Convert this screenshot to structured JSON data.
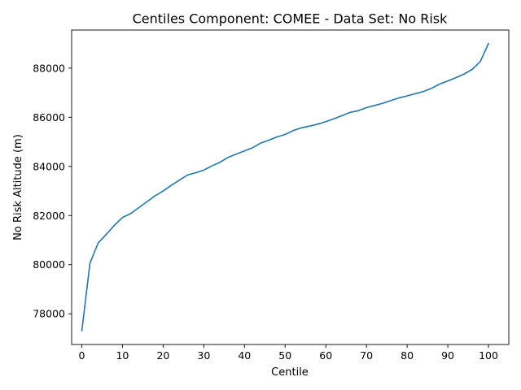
{
  "chart_data": {
    "type": "line",
    "title": "Centiles Component: COMEE - Data Set: No Risk",
    "xlabel": "Centile",
    "ylabel": "No Risk Altitude (m)",
    "xlim": [
      -2.5,
      105
    ],
    "ylim": [
      76750,
      89550
    ],
    "xticks": [
      0,
      10,
      20,
      30,
      40,
      50,
      60,
      70,
      80,
      90,
      100
    ],
    "xtick_labels": [
      "0",
      "10",
      "20",
      "30",
      "40",
      "50",
      "60",
      "70",
      "80",
      "90",
      "100"
    ],
    "yticks": [
      78000,
      80000,
      82000,
      84000,
      86000,
      88000
    ],
    "ytick_labels": [
      "78000",
      "80000",
      "82000",
      "84000",
      "86000",
      "88000"
    ],
    "grid": false,
    "series": [
      {
        "color": "#1f77b4",
        "x": [
          0,
          2,
          4,
          6,
          8,
          10,
          12,
          14,
          16,
          18,
          20,
          22,
          24,
          26,
          28,
          30,
          32,
          34,
          36,
          38,
          40,
          42,
          44,
          46,
          48,
          50,
          52,
          54,
          56,
          58,
          60,
          62,
          64,
          66,
          68,
          70,
          72,
          74,
          76,
          78,
          80,
          82,
          84,
          86,
          88,
          90,
          92,
          94,
          96,
          98,
          100
        ],
        "y": [
          77300,
          80050,
          80880,
          81230,
          81600,
          81920,
          82080,
          82320,
          82560,
          82800,
          83000,
          83230,
          83440,
          83650,
          83740,
          83850,
          84020,
          84170,
          84370,
          84500,
          84630,
          84760,
          84950,
          85070,
          85200,
          85300,
          85460,
          85570,
          85640,
          85720,
          85820,
          85940,
          86070,
          86200,
          86270,
          86390,
          86480,
          86570,
          86680,
          86790,
          86870,
          86960,
          87050,
          87180,
          87350,
          87480,
          87610,
          87760,
          87950,
          88270,
          89000
        ]
      }
    ]
  }
}
